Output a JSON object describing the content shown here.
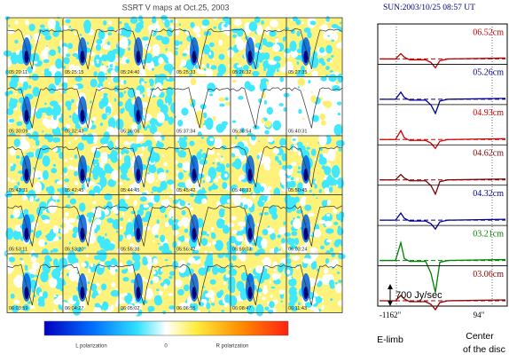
{
  "left_panel": {
    "title": "SSRT V maps at Oct.25, 2003",
    "tiles": [
      "05:20:11",
      "05:25:15",
      "05:24:40",
      "05:25:33",
      "05:26:32",
      "05:27:35",
      "05:30:09",
      "05:32:43",
      "05:36:06",
      "05:37:34",
      "05:38:54",
      "05:40:31",
      "05:43:31",
      "05:42:45",
      "05:44:45",
      "05:45:42",
      "05:46:33",
      "05:50:45",
      "05:53:11",
      "05:53:20",
      "05:55:38",
      "05:56:42",
      "05:59:03",
      "06:03:24",
      "06:03:59",
      "06:04:27",
      "06:05:02",
      "06:06:55",
      "06:08:47",
      "06:11:43"
    ],
    "colorbar": {
      "left_label": "L polarization",
      "center_label": "0",
      "right_label": "R polarization"
    }
  },
  "right_panel": {
    "title": "SUN:2003/10/25 08:57 UT",
    "channels": [
      {
        "label": "06.52cm",
        "color": "#c00000"
      },
      {
        "label": "05.26cm",
        "color": "#000090"
      },
      {
        "label": "04.93cm",
        "color": "#d00000"
      },
      {
        "label": "04.62cm",
        "color": "#800000"
      },
      {
        "label": "04.32cm",
        "color": "#000090"
      },
      {
        "label": "03.21cm",
        "color": "#008000"
      },
      {
        "label": "03.06cm",
        "color": "#900000"
      }
    ],
    "scale_label": "700 Jy/sec",
    "left_position": "-1162\"",
    "right_position": "94\"",
    "left_name": "E-limb",
    "right_name_line1": "Center",
    "right_name_line2": "of the disc"
  }
}
